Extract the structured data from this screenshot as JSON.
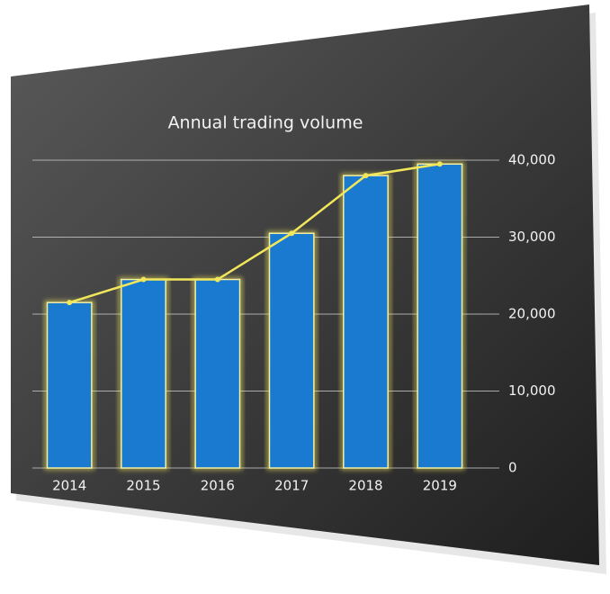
{
  "chart_data": {
    "type": "bar",
    "title": "Annual trading volume",
    "categories": [
      "2014",
      "2015",
      "2016",
      "2017",
      "2018",
      "2019"
    ],
    "values": [
      21500,
      24500,
      24500,
      30500,
      38000,
      39500
    ],
    "color": "#1a7ad0",
    "line_color": "#f2e75a",
    "ylim": [
      0,
      40000
    ],
    "yticks": [
      0,
      {
        "value": 10000,
        "label": "10,000"
      },
      {
        "value": 20000,
        "label": "20,000"
      },
      {
        "value": 30000,
        "label": "30,000"
      },
      {
        "value": 40000,
        "label": "40,000"
      }
    ],
    "grid": true
  }
}
